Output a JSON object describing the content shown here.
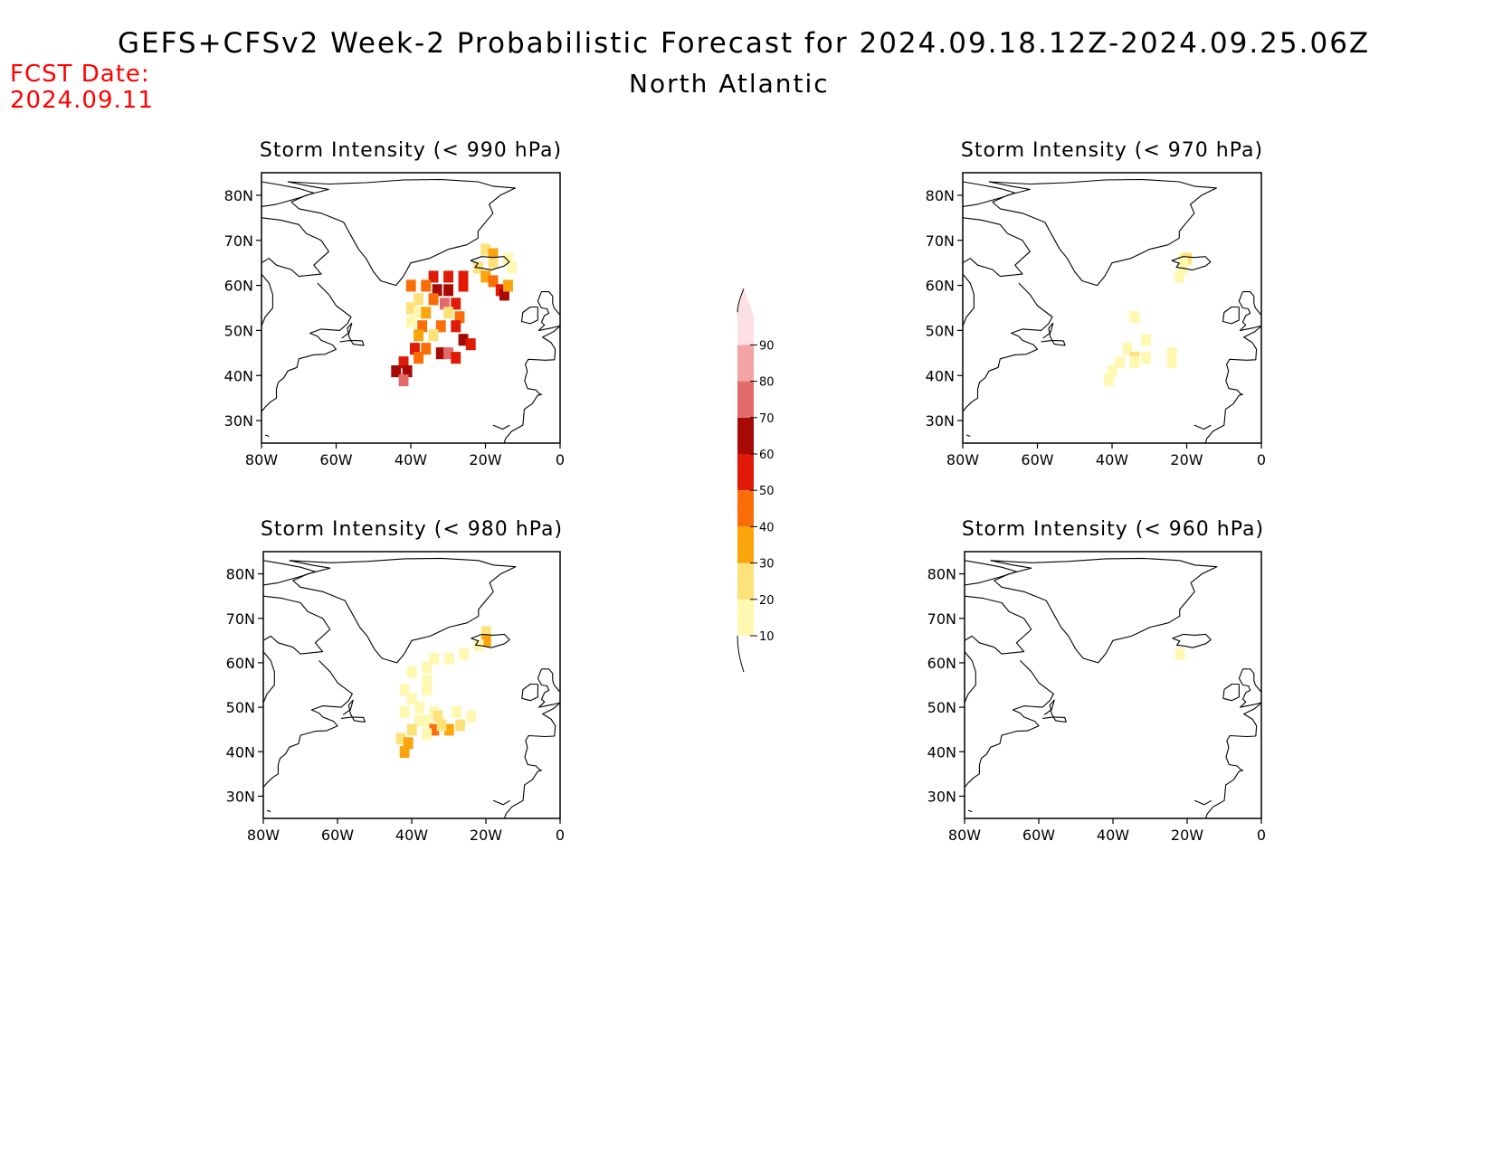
{
  "header": {
    "title": "GEFS+CFSv2 Week-2 Probabilistic Forecast for 2024.09.18.12Z-2024.09.25.06Z",
    "subtitle": "North Atlantic",
    "fcst_label": "FCST Date:",
    "fcst_date": "2024.09.11"
  },
  "axes": {
    "lon_ticks": [
      "80W",
      "60W",
      "40W",
      "20W",
      "0"
    ],
    "lat_ticks": [
      "80N",
      "70N",
      "60N",
      "50N",
      "40N",
      "30N"
    ],
    "lon_range_deg": [
      -80,
      0
    ],
    "lat_range_deg": [
      25,
      85
    ]
  },
  "colorbar": {
    "levels": [
      "10",
      "20",
      "30",
      "40",
      "50",
      "60",
      "70",
      "80",
      "90"
    ],
    "colors": [
      "#fff8b0",
      "#fde27a",
      "#fba40c",
      "#fb6e07",
      "#e11a08",
      "#a70a05",
      "#e36a6a",
      "#f3a4a4",
      "#fde0e4"
    ]
  },
  "panels": [
    {
      "id": "p990",
      "title": "Storm Intensity (< 990 hPa)",
      "cells": [
        [
          20,
          68,
          2
        ],
        [
          18,
          67,
          3
        ],
        [
          18,
          65,
          2
        ],
        [
          14,
          66,
          1
        ],
        [
          13,
          64,
          1
        ],
        [
          22,
          64,
          2
        ],
        [
          20,
          62,
          3
        ],
        [
          18,
          61,
          4
        ],
        [
          16,
          59,
          5
        ],
        [
          15,
          58,
          6
        ],
        [
          14,
          60,
          3
        ],
        [
          26,
          62,
          5
        ],
        [
          30,
          62,
          5
        ],
        [
          34,
          62,
          5
        ],
        [
          36,
          60,
          4
        ],
        [
          40,
          60,
          4
        ],
        [
          33,
          59,
          6
        ],
        [
          30,
          59,
          6
        ],
        [
          26,
          60,
          5
        ],
        [
          38,
          57,
          2
        ],
        [
          34,
          57,
          4
        ],
        [
          31,
          56,
          7
        ],
        [
          28,
          56,
          5
        ],
        [
          40,
          55,
          2
        ],
        [
          38,
          54,
          1
        ],
        [
          36,
          54,
          3
        ],
        [
          30,
          54,
          2
        ],
        [
          27,
          53,
          4
        ],
        [
          40,
          52,
          1
        ],
        [
          37,
          51,
          4
        ],
        [
          32,
          51,
          4
        ],
        [
          28,
          51,
          5
        ],
        [
          38,
          49,
          3
        ],
        [
          34,
          49,
          2
        ],
        [
          26,
          48,
          6
        ],
        [
          24,
          47,
          5
        ],
        [
          39,
          46,
          5
        ],
        [
          36,
          46,
          4
        ],
        [
          32,
          45,
          6
        ],
        [
          30,
          45,
          7
        ],
        [
          28,
          44,
          5
        ],
        [
          42,
          43,
          5
        ],
        [
          38,
          44,
          4
        ],
        [
          44,
          41,
          6
        ],
        [
          41,
          41,
          6
        ],
        [
          42,
          39,
          7
        ]
      ]
    },
    {
      "id": "p970",
      "title": "Storm Intensity (< 970 hPa)",
      "cells": [
        [
          21,
          66,
          1
        ],
        [
          20,
          66,
          2
        ],
        [
          21,
          65,
          1
        ],
        [
          21,
          64,
          1
        ],
        [
          22,
          62,
          1
        ],
        [
          34,
          53,
          1
        ],
        [
          31,
          48,
          1
        ],
        [
          36,
          46,
          1
        ],
        [
          34,
          44,
          2
        ],
        [
          34,
          43,
          1
        ],
        [
          38,
          43,
          1
        ],
        [
          31,
          44,
          1
        ],
        [
          24,
          45,
          1
        ],
        [
          24,
          43,
          1
        ],
        [
          40,
          41,
          1
        ],
        [
          41,
          39,
          1
        ]
      ]
    },
    {
      "id": "p980",
      "title": "Storm Intensity (< 980 hPa)",
      "cells": [
        [
          20,
          67,
          2
        ],
        [
          20,
          65,
          3
        ],
        [
          22,
          64,
          1
        ],
        [
          26,
          62,
          1
        ],
        [
          30,
          61,
          1
        ],
        [
          34,
          61,
          1
        ],
        [
          36,
          59,
          1
        ],
        [
          40,
          58,
          1
        ],
        [
          36,
          56,
          1
        ],
        [
          36,
          54,
          1
        ],
        [
          42,
          54,
          1
        ],
        [
          40,
          52,
          1
        ],
        [
          38,
          50,
          1
        ],
        [
          42,
          49,
          1
        ],
        [
          34,
          49,
          1
        ],
        [
          28,
          49,
          1
        ],
        [
          24,
          48,
          1
        ],
        [
          33,
          48,
          2
        ],
        [
          36,
          47,
          1
        ],
        [
          38,
          47,
          1
        ],
        [
          40,
          45,
          2
        ],
        [
          34,
          45,
          4
        ],
        [
          30,
          45,
          3
        ],
        [
          27,
          46,
          2
        ],
        [
          32,
          46,
          2
        ],
        [
          43,
          43,
          2
        ],
        [
          41,
          42,
          3
        ],
        [
          42,
          40,
          3
        ],
        [
          36,
          44,
          1
        ]
      ]
    },
    {
      "id": "p960",
      "title": "Storm Intensity (< 960 hPa)",
      "cells": [
        [
          22,
          62,
          1
        ]
      ]
    }
  ]
}
